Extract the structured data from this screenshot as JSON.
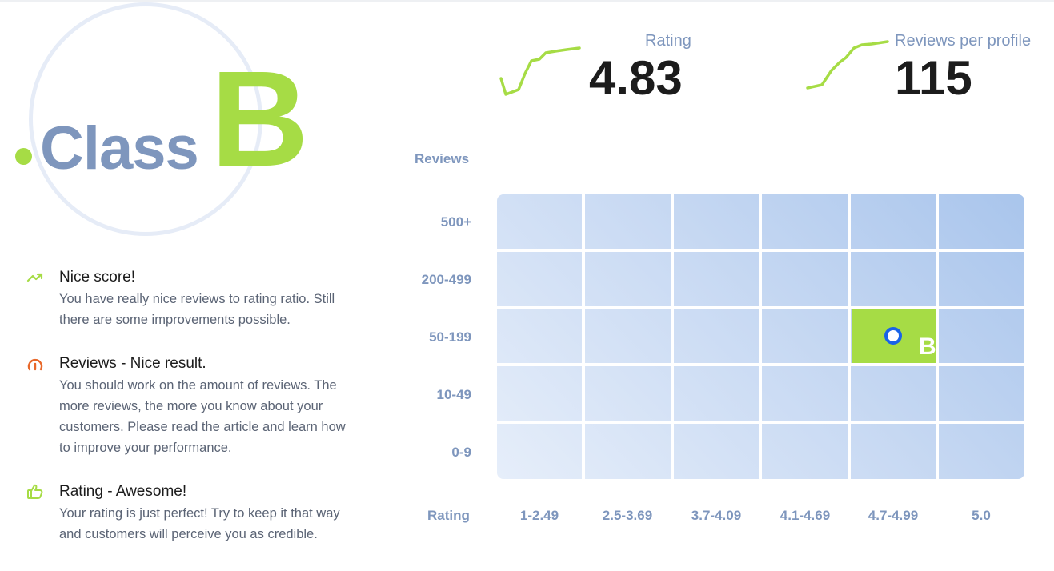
{
  "badge": {
    "word": "Class",
    "letter": "B"
  },
  "stats": [
    {
      "label": "Rating",
      "value": "4.83"
    },
    {
      "label": "Reviews per profile",
      "value": "115"
    }
  ],
  "feedback": [
    {
      "icon": "trending-up-icon",
      "title": "Nice score!",
      "text": "You have really nice reviews to rating ratio. Still there are some improvements possible."
    },
    {
      "icon": "gauge-icon",
      "title": "Reviews - Nice result.",
      "text": "You should work on the amount of reviews. The more reviews, the more you know about your customers. Please read the article and learn how to improve your performance."
    },
    {
      "icon": "thumbs-up-icon",
      "title": "Rating - Awesome!",
      "text": "Your rating is just perfect! Try to keep it that way and customers will perceive you as credible."
    }
  ],
  "grid": {
    "y_axis_title": "Reviews",
    "x_axis_title": "Rating",
    "rows": [
      "500+",
      "200-499",
      "50-199",
      "10-49",
      "0-9"
    ],
    "columns": [
      "1-2.49",
      "2.5-3.69",
      "3.7-4.09",
      "4.1-4.69",
      "4.7-4.99",
      "5.0"
    ],
    "active": {
      "row": "50-199",
      "column": "4.7-4.99",
      "label": "B"
    }
  },
  "colors": {
    "accent": "#a6dc45",
    "muted": "#7e96bd",
    "marker": "#1963e8",
    "warning": "#e8682a"
  }
}
